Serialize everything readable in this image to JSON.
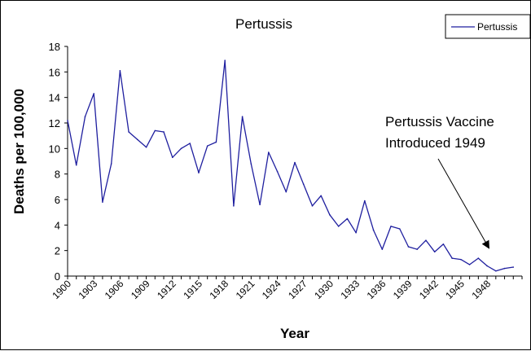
{
  "chart_data": {
    "type": "line",
    "title": "Pertussis",
    "xlabel": "Year",
    "ylabel": "Deaths per 100,000",
    "ylim": [
      0,
      18
    ],
    "yticks": [
      "0",
      "2",
      "4",
      "6",
      "8",
      "10",
      "12",
      "14",
      "16",
      "18"
    ],
    "xticks": [
      "1900",
      "1903",
      "1906",
      "1909",
      "1912",
      "1915",
      "1918",
      "1921",
      "1924",
      "1927",
      "1930",
      "1933",
      "1936",
      "1939",
      "1942",
      "1945",
      "1948"
    ],
    "legend_position": "top-right",
    "grid": false,
    "series": [
      {
        "name": "Pertussis",
        "color": "#1f1f9f",
        "x": [
          1900,
          1901,
          1902,
          1903,
          1904,
          1905,
          1906,
          1907,
          1908,
          1909,
          1910,
          1911,
          1912,
          1913,
          1914,
          1915,
          1916,
          1917,
          1918,
          1919,
          1920,
          1921,
          1922,
          1923,
          1924,
          1925,
          1926,
          1927,
          1928,
          1929,
          1930,
          1931,
          1932,
          1933,
          1934,
          1935,
          1936,
          1937,
          1938,
          1939,
          1940,
          1941,
          1942,
          1943,
          1944,
          1945,
          1946,
          1947,
          1948,
          1949,
          1950,
          1951
        ],
        "values": [
          12.2,
          8.7,
          12.5,
          14.3,
          5.8,
          8.8,
          16.1,
          11.3,
          10.7,
          10.1,
          11.4,
          11.3,
          9.3,
          10.0,
          10.4,
          8.1,
          10.2,
          10.5,
          16.9,
          5.5,
          12.5,
          8.8,
          5.6,
          9.7,
          8.2,
          6.6,
          8.9,
          7.2,
          5.5,
          6.3,
          4.8,
          3.9,
          4.5,
          3.4,
          5.9,
          3.6,
          2.1,
          3.9,
          3.7,
          2.3,
          2.1,
          2.8,
          1.9,
          2.5,
          1.4,
          1.3,
          0.9,
          1.4,
          0.8,
          0.4,
          0.6,
          0.7
        ]
      }
    ],
    "annotations": [
      {
        "text_lines": [
          "Pertussis Vaccine",
          "Introduced 1949"
        ],
        "target_x": 1949,
        "target_y": 2.2
      }
    ]
  }
}
